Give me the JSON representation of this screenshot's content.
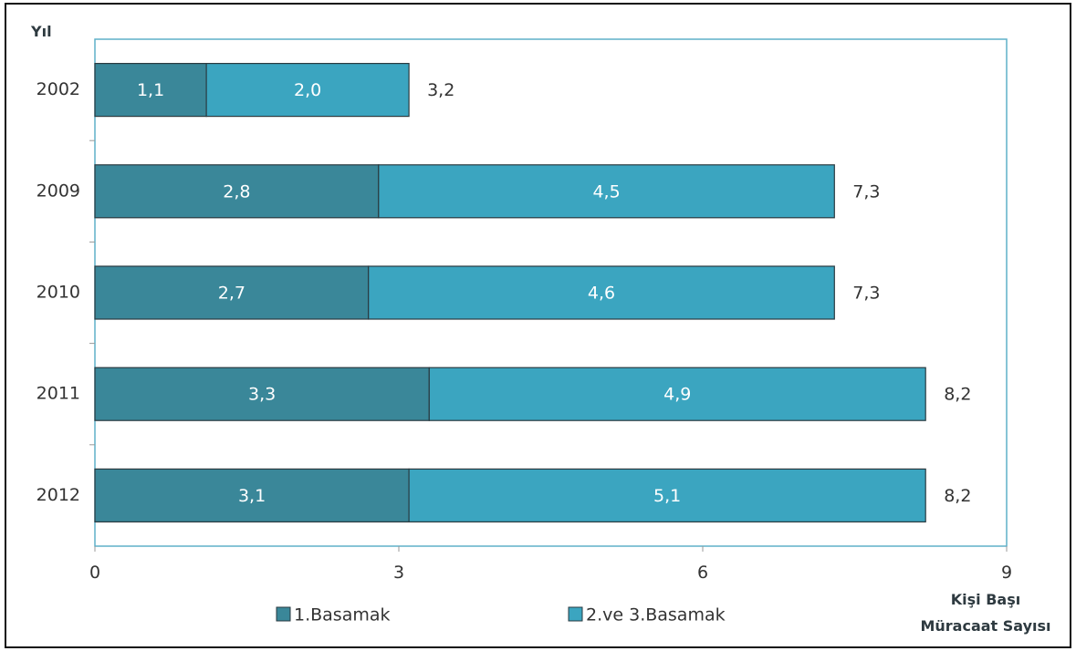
{
  "chart_data": {
    "type": "bar",
    "orientation": "horizontal",
    "stacked": true,
    "ylabel": "Yıl",
    "xlabel_lines": [
      "Kişi Başı",
      "Müracaat Sayısı"
    ],
    "categories": [
      "2002",
      "2009",
      "2010",
      "2011",
      "2012"
    ],
    "series": [
      {
        "name": "1.Basamak",
        "values": [
          1.1,
          2.8,
          2.7,
          3.3,
          3.1
        ],
        "labels": [
          "1,1",
          "2,8",
          "2,7",
          "3,3",
          "3,1"
        ]
      },
      {
        "name": "2.ve 3.Basamak",
        "values": [
          2.0,
          4.5,
          4.6,
          4.9,
          5.1
        ],
        "labels": [
          "2,0",
          "4,5",
          "4,6",
          "4,9",
          "5,1"
        ]
      }
    ],
    "totals": [
      3.2,
      7.3,
      7.3,
      8.2,
      8.2
    ],
    "total_labels": [
      "3,2",
      "7,3",
      "7,3",
      "8,2",
      "8,2"
    ],
    "xlim": [
      0,
      9
    ],
    "xticks": [
      0,
      3,
      6,
      9
    ],
    "grid": false,
    "legend_position": "bottom",
    "colors": {
      "1.Basamak": "#3a8799",
      "2.ve 3.Basamak": "#3ba5c0",
      "frame": "#111111",
      "plot_border": "#5fb0c8"
    }
  }
}
